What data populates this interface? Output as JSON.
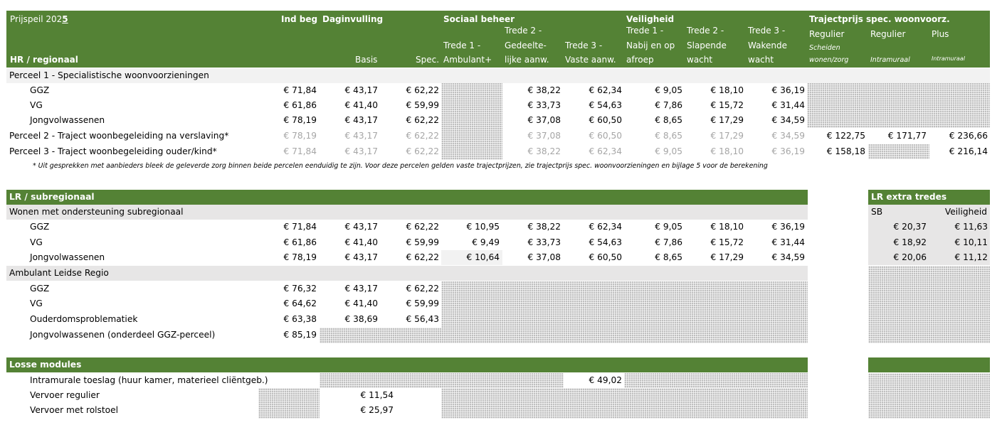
{
  "colors": {
    "header_green": "#548235",
    "section_grey": "#e7e6e6",
    "muted_text": "#a6a6a6"
  },
  "header": {
    "prijspeil_prefix": "Prijspeil 202",
    "prijspeil_year_suffix": "5",
    "ind_beg": "Ind beg",
    "daginvulling": "Daginvulling",
    "sociaal_beheer": "Sociaal beheer",
    "veiligheid": "Veiligheid",
    "trajectprijs": "Trajectprijs spec. woonvoorz.",
    "hr_regionaal": "HR / regionaal",
    "basis": "Basis",
    "spec": "Spec.",
    "sb_t1_l1": "Trede 1 -",
    "sb_t1_l2": "Ambulant+",
    "sb_t2_l1": "Trede 2 -",
    "sb_t2_l2": "Gedeelte-",
    "sb_t2_l3": "lijke aanw.",
    "sb_t3_l1": "Trede 3 -",
    "sb_t3_l2": "Vaste aanw.",
    "v_t1_l1": "Trede 1 -",
    "v_t1_l2": "Nabij en op",
    "v_t1_l3": "afroep",
    "v_t2_l1": "Trede 2 -",
    "v_t2_l2": "Slapende",
    "v_t2_l3": "wacht",
    "v_t3_l1": "Trede 3 -",
    "v_t3_l2": "Wakende",
    "v_t3_l3": "wacht",
    "tp_c1_l1": "Regulier",
    "tp_c1_l2": "Scheiden",
    "tp_c1_l3": "wonen/zorg",
    "tp_c2_l1": "Regulier",
    "tp_c2_l2": "Intramuraal",
    "tp_c3_l1": "Plus",
    "tp_c3_l2": "Intramuraal"
  },
  "hr": {
    "perceel1_label": "Perceel 1 - Specialistische woonvoorzieningen",
    "perceel1_rows": [
      {
        "label": "GGZ",
        "ind": "€ 71,84",
        "basis": "€ 43,17",
        "spec": "€ 62,22",
        "sb2": "€ 38,22",
        "sb3": "€ 62,34",
        "v1": "€ 9,05",
        "v2": "€ 18,10",
        "v3": "€ 36,19"
      },
      {
        "label": "VG",
        "ind": "€ 61,86",
        "basis": "€ 41,40",
        "spec": "€ 59,99",
        "sb2": "€ 33,73",
        "sb3": "€ 54,63",
        "v1": "€ 7,86",
        "v2": "€ 15,72",
        "v3": "€ 31,44"
      },
      {
        "label": "Jongvolwassenen",
        "ind": "€ 78,19",
        "basis": "€ 43,17",
        "spec": "€ 62,22",
        "sb2": "€ 37,08",
        "sb3": "€ 60,50",
        "v1": "€ 8,65",
        "v2": "€ 17,29",
        "v3": "€ 34,59"
      }
    ],
    "perceel2": {
      "label": "Perceel 2 - Traject woonbegeleiding na verslaving*",
      "ind": "€ 78,19",
      "basis": "€ 43,17",
      "spec": "€ 62,22",
      "sb2": "€ 37,08",
      "sb3": "€ 60,50",
      "v1": "€ 8,65",
      "v2": "€ 17,29",
      "v3": "€ 34,59",
      "tp1": "€ 122,75",
      "tp2": "€ 171,77",
      "tp3": "€ 236,66"
    },
    "perceel3": {
      "label": "Perceel 3 - Traject woonbegeleiding ouder/kind*",
      "ind": "€ 71,84",
      "basis": "€ 43,17",
      "spec": "€ 62,22",
      "sb2": "€ 38,22",
      "sb3": "€ 62,34",
      "v1": "€ 9,05",
      "v2": "€ 18,10",
      "v3": "€ 36,19",
      "tp1": "€ 158,18",
      "tp3": "€ 216,14"
    },
    "footnote": "* Uit gesprekken met aanbieders bleek de geleverde zorg binnen beide percelen eenduidig te zijn. Voor deze percelen gelden vaste trajectprijzen, zie trajectprijs spec. woonvoorzieningen en bijlage 5 voor de berekening"
  },
  "lr": {
    "title": "LR / subregionaal",
    "extra_title": "LR extra tredes",
    "extra_sb": "SB",
    "extra_veiligheid": "Veiligheid",
    "wonen_label": "Wonen met ondersteuning subregionaal",
    "wonen_rows": [
      {
        "label": "GGZ",
        "ind": "€ 71,84",
        "basis": "€ 43,17",
        "spec": "€ 62,22",
        "sb1": "€ 10,95",
        "sb2": "€ 38,22",
        "sb3": "€ 62,34",
        "v1": "€ 9,05",
        "v2": "€ 18,10",
        "v3": "€ 36,19",
        "xsb": "€ 20,37",
        "xv": "€ 11,63"
      },
      {
        "label": "VG",
        "ind": "€ 61,86",
        "basis": "€ 41,40",
        "spec": "€ 59,99",
        "sb1": "€ 9,49",
        "sb2": "€ 33,73",
        "sb3": "€ 54,63",
        "v1": "€ 7,86",
        "v2": "€ 15,72",
        "v3": "€ 31,44",
        "xsb": "€ 18,92",
        "xv": "€ 10,11"
      },
      {
        "label": "Jongvolwassenen",
        "ind": "€ 78,19",
        "basis": "€ 43,17",
        "spec": "€ 62,22",
        "sb1": "€ 10,64",
        "sb2": "€ 37,08",
        "sb3": "€ 60,50",
        "v1": "€ 8,65",
        "v2": "€ 17,29",
        "v3": "€ 34,59",
        "xsb": "€ 20,06",
        "xv": "€ 11,12"
      }
    ],
    "ambulant_label": "Ambulant Leidse Regio",
    "ambulant_rows": [
      {
        "label": "GGZ",
        "ind": "€ 76,32",
        "basis": "€ 43,17",
        "spec": "€ 62,22"
      },
      {
        "label": "VG",
        "ind": "€ 64,62",
        "basis": "€ 41,40",
        "spec": "€ 59,99"
      },
      {
        "label": "Ouderdomsproblematiek",
        "ind": "€ 63,38",
        "basis": "€ 38,69",
        "spec": "€ 56,43"
      },
      {
        "label": "Jongvolwassenen (onderdeel GGZ-perceel)",
        "ind": "€ 85,19"
      }
    ]
  },
  "losse": {
    "title": "Losse modules",
    "rows": [
      {
        "label": "Intramurale toeslag (huur kamer, materieel cliëntgeb.)",
        "value": "€ 49,02"
      },
      {
        "label": "Vervoer regulier",
        "value": "€ 11,54"
      },
      {
        "label": "Vervoer met rolstoel",
        "value": "€ 25,97"
      }
    ]
  }
}
